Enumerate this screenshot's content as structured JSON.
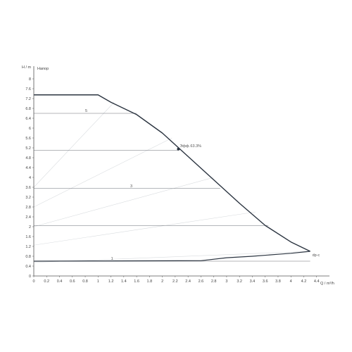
{
  "chart_data": {
    "type": "line",
    "title": "",
    "xlabel": "Q / m³/h",
    "ylabel": "H / m",
    "series_title": "Напор",
    "xlim": [
      0,
      4.6
    ],
    "ylim": [
      0,
      8.4
    ],
    "x_ticks": [
      0,
      0.2,
      0.4,
      0.6,
      0.8,
      1,
      1.2,
      1.4,
      1.6,
      1.8,
      2,
      2.2,
      2.4,
      2.6,
      2.8,
      3,
      3.2,
      3.4,
      3.6,
      3.8,
      4,
      4.2,
      4.4
    ],
    "y_ticks": [
      0,
      0.4,
      0.8,
      1.2,
      1.6,
      2,
      2.4,
      2.8,
      3.2,
      3.6,
      4,
      4.4,
      4.8,
      5.2,
      5.6,
      6,
      6.4,
      6.8,
      7.2,
      7.6,
      8
    ],
    "grid": false,
    "colors": {
      "curve": "#2b3440",
      "level_lines": "#6a6f77",
      "efficiency_lines": "#d9dcdf",
      "axis": "#555555",
      "text": "#444444"
    },
    "max_curve": [
      [
        0,
        7.35
      ],
      [
        1.0,
        7.35
      ],
      [
        1.2,
        7.05
      ],
      [
        1.6,
        6.55
      ],
      [
        2.0,
        5.8
      ],
      [
        2.4,
        4.85
      ],
      [
        2.8,
        3.9
      ],
      [
        3.2,
        2.95
      ],
      [
        3.6,
        2.05
      ],
      [
        4.0,
        1.38
      ],
      [
        4.3,
        1.0
      ]
    ],
    "min_curve": [
      [
        0,
        0.6
      ],
      [
        2.6,
        0.62
      ],
      [
        3.0,
        0.74
      ],
      [
        3.4,
        0.8
      ],
      [
        3.8,
        0.88
      ],
      [
        4.0,
        0.92
      ],
      [
        4.3,
        1.0
      ]
    ],
    "level_lines": [
      {
        "label": "5",
        "y": 6.6,
        "x_end": 1.6,
        "label_x": 0.8
      },
      {
        "label": "",
        "y": 5.1,
        "x_end": 2.25,
        "label_x": 1.0
      },
      {
        "label": "3",
        "y": 3.55,
        "x_end": 2.9,
        "label_x": 1.5
      },
      {
        "label": "",
        "y": 2.05,
        "x_end": 3.65,
        "label_x": 1.5
      },
      {
        "label": "1",
        "y": 0.6,
        "x_end": 4.3,
        "label_x": 1.2
      }
    ],
    "efficiency_lines": [
      [
        [
          0.0,
          3.6
        ],
        [
          1.25,
          7.05
        ]
      ],
      [
        [
          0.0,
          2.8
        ],
        [
          2.15,
          5.6
        ]
      ],
      [
        [
          0.0,
          2.0
        ],
        [
          2.8,
          4.0
        ]
      ],
      [
        [
          0.0,
          1.25
        ],
        [
          3.45,
          2.6
        ]
      ],
      [
        [
          0.0,
          0.55
        ],
        [
          4.3,
          1.0
        ]
      ]
    ],
    "operating_point": {
      "x": 2.25,
      "y": 5.15,
      "label": "Эфф.",
      "value": "63.3%"
    },
    "curve_end_label": "dp-c",
    "curve_end_point": {
      "x": 4.3,
      "y": 1.0
    }
  }
}
